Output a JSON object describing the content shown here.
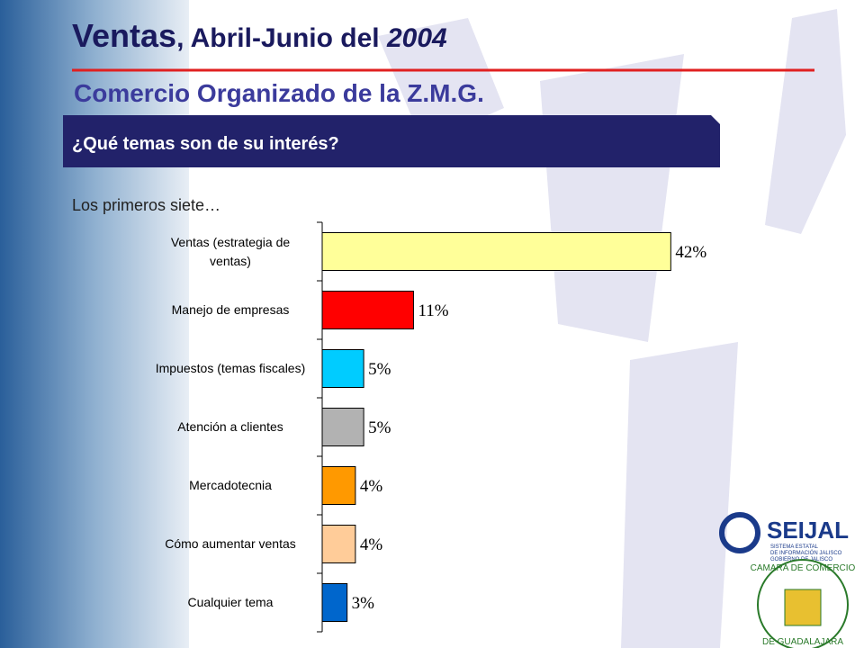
{
  "header": {
    "title_parts": [
      "Ventas",
      ", Abril-Junio del ",
      "2004"
    ],
    "subtitle": "Comercio Organizado de la Z.M.G.",
    "banner": "¿Qué temas son de su interés?",
    "note": "Los primeros siete…"
  },
  "logos": {
    "seijal": {
      "name": "SEIJAL",
      "line1": "SISTEMA ESTATAL",
      "line2": "DE INFORMACIÓN JALISCO",
      "line3": "GOBIERNO DE JALISCO"
    },
    "camara": {
      "top": "CAMARA DE COMERCIO",
      "bottom": "DE GUADALAJARA"
    }
  },
  "chart_data": {
    "type": "hbar",
    "categories": [
      "Ventas (estrategia de ventas)",
      "Manejo de empresas",
      "Impuestos (temas fiscales)",
      "Atención a clientes",
      "Mercadotecnia",
      "Cómo aumentar ventas",
      "Cualquier tema"
    ],
    "values": [
      42,
      11,
      5,
      5,
      4,
      4,
      3
    ],
    "value_labels": [
      "42%",
      "11%",
      "5%",
      "5%",
      "4%",
      "4%",
      "3%"
    ],
    "colors": [
      "#ffff99",
      "#ff0000",
      "#00ccff",
      "#b2b2b2",
      "#ff9900",
      "#ffcc99",
      "#0066cc"
    ],
    "xlim": [
      0,
      45
    ]
  }
}
